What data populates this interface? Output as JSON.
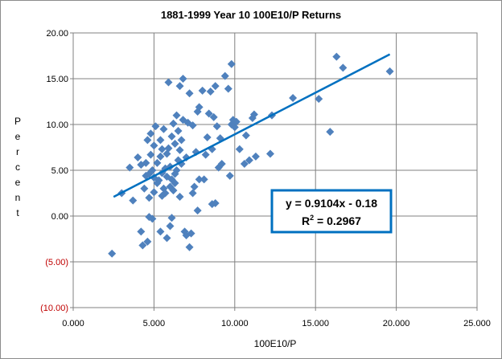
{
  "chart_data": {
    "type": "scatter",
    "title": "1881-1999 Year 10 100E10/P Returns",
    "xlabel": "100E10/P",
    "ylabel": "Percent",
    "xlim": [
      0,
      25
    ],
    "ylim": [
      -10,
      20
    ],
    "x_ticks": [
      "0.000",
      "5.000",
      "10.000",
      "15.000",
      "20.000",
      "25.000"
    ],
    "y_ticks": [
      {
        "value": 20,
        "label": "20.00",
        "negative": false
      },
      {
        "value": 15,
        "label": "15.00",
        "negative": false
      },
      {
        "value": 10,
        "label": "10.00",
        "negative": false
      },
      {
        "value": 5,
        "label": "5.00",
        "negative": false
      },
      {
        "value": 0,
        "label": "0.00",
        "negative": false
      },
      {
        "value": -5,
        "label": "(5.00)",
        "negative": true
      },
      {
        "value": -10,
        "label": "(10.00)",
        "negative": true
      }
    ],
    "grid": true,
    "marker_color": "#4f81bd",
    "trendline_color": "#0070c0",
    "trendline": {
      "slope": 0.9104,
      "intercept": -0.18,
      "x_range": [
        2.5,
        19.6
      ]
    },
    "equation": "y = 0.9104x - 0.18",
    "r_squared_label": "R",
    "r_squared_exp": "2",
    "r_squared_value": " = 0.2967",
    "points": [
      [
        2.4,
        -4.1
      ],
      [
        3.0,
        2.5
      ],
      [
        3.5,
        5.3
      ],
      [
        3.7,
        1.7
      ],
      [
        4.0,
        6.4
      ],
      [
        4.2,
        -1.7
      ],
      [
        4.2,
        5.6
      ],
      [
        4.3,
        -3.2
      ],
      [
        4.4,
        3.0
      ],
      [
        4.5,
        4.4
      ],
      [
        4.5,
        5.8
      ],
      [
        4.6,
        -2.8
      ],
      [
        4.6,
        8.3
      ],
      [
        4.7,
        2.0
      ],
      [
        4.7,
        -0.1
      ],
      [
        4.7,
        4.6
      ],
      [
        4.8,
        6.7
      ],
      [
        4.8,
        9.0
      ],
      [
        4.9,
        5.0
      ],
      [
        4.9,
        -0.3
      ],
      [
        5.0,
        2.6
      ],
      [
        5.0,
        4.2
      ],
      [
        5.0,
        7.7
      ],
      [
        5.1,
        9.8
      ],
      [
        5.2,
        3.6
      ],
      [
        5.2,
        5.8
      ],
      [
        5.3,
        3.9
      ],
      [
        5.4,
        -1.7
      ],
      [
        5.4,
        6.5
      ],
      [
        5.4,
        8.3
      ],
      [
        5.5,
        2.2
      ],
      [
        5.5,
        4.7
      ],
      [
        5.5,
        7.3
      ],
      [
        5.6,
        3.0
      ],
      [
        5.6,
        9.5
      ],
      [
        5.7,
        5.2
      ],
      [
        5.7,
        2.5
      ],
      [
        5.8,
        -2.4
      ],
      [
        5.8,
        4.3
      ],
      [
        5.8,
        6.8
      ],
      [
        5.9,
        7.4
      ],
      [
        5.9,
        14.6
      ],
      [
        6.0,
        -1.1
      ],
      [
        6.0,
        3.2
      ],
      [
        6.0,
        5.4
      ],
      [
        6.1,
        8.7
      ],
      [
        6.1,
        -0.2
      ],
      [
        6.1,
        4.0
      ],
      [
        6.2,
        2.8
      ],
      [
        6.2,
        10.1
      ],
      [
        6.3,
        7.9
      ],
      [
        6.3,
        4.6
      ],
      [
        6.3,
        3.6
      ],
      [
        6.4,
        11.0
      ],
      [
        6.4,
        5.0
      ],
      [
        6.5,
        6.1
      ],
      [
        6.5,
        9.3
      ],
      [
        6.6,
        2.1
      ],
      [
        6.6,
        7.2
      ],
      [
        6.6,
        14.2
      ],
      [
        6.7,
        5.7
      ],
      [
        6.7,
        8.3
      ],
      [
        6.8,
        15.0
      ],
      [
        6.8,
        10.5
      ],
      [
        6.9,
        -1.7
      ],
      [
        7.0,
        -2.1
      ],
      [
        7.0,
        6.4
      ],
      [
        7.1,
        10.2
      ],
      [
        7.2,
        -3.4
      ],
      [
        7.2,
        13.4
      ],
      [
        7.3,
        -1.9
      ],
      [
        7.4,
        2.5
      ],
      [
        7.4,
        9.9
      ],
      [
        7.5,
        3.2
      ],
      [
        7.6,
        7.0
      ],
      [
        7.7,
        0.6
      ],
      [
        7.7,
        11.4
      ],
      [
        7.8,
        11.9
      ],
      [
        7.8,
        4.0
      ],
      [
        8.0,
        13.7
      ],
      [
        8.1,
        4.0
      ],
      [
        8.2,
        6.7
      ],
      [
        8.3,
        8.6
      ],
      [
        8.4,
        11.2
      ],
      [
        8.5,
        13.6
      ],
      [
        8.6,
        1.3
      ],
      [
        8.6,
        7.3
      ],
      [
        8.7,
        10.8
      ],
      [
        8.8,
        14.2
      ],
      [
        8.8,
        1.4
      ],
      [
        8.9,
        9.8
      ],
      [
        9.0,
        5.3
      ],
      [
        9.1,
        8.5
      ],
      [
        9.2,
        5.7
      ],
      [
        9.4,
        15.3
      ],
      [
        9.6,
        13.9
      ],
      [
        9.7,
        4.4
      ],
      [
        9.8,
        16.6
      ],
      [
        9.8,
        10.0
      ],
      [
        9.9,
        10.5
      ],
      [
        10.0,
        9.7
      ],
      [
        10.1,
        10.3
      ],
      [
        10.3,
        7.3
      ],
      [
        10.6,
        5.7
      ],
      [
        10.7,
        8.8
      ],
      [
        10.9,
        6.1
      ],
      [
        11.1,
        10.7
      ],
      [
        11.2,
        11.1
      ],
      [
        11.3,
        6.5
      ],
      [
        12.2,
        6.8
      ],
      [
        12.3,
        11.0
      ],
      [
        13.6,
        12.9
      ],
      [
        15.2,
        12.8
      ],
      [
        15.9,
        9.2
      ],
      [
        16.3,
        17.4
      ],
      [
        16.7,
        16.2
      ],
      [
        19.6,
        15.8
      ]
    ]
  }
}
